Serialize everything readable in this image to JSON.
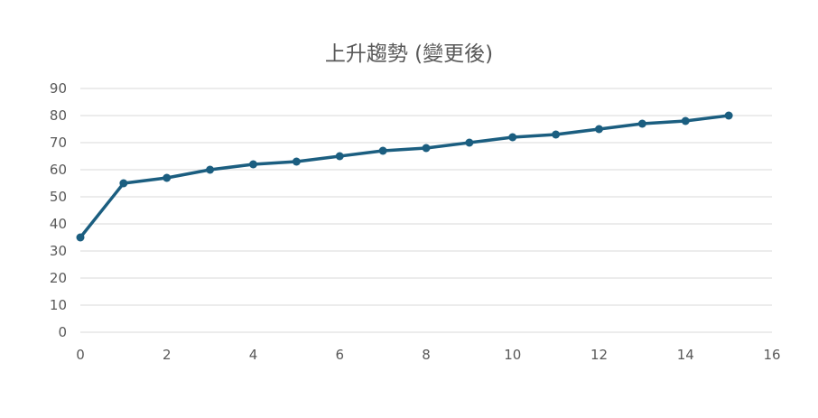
{
  "chart_data": {
    "type": "line",
    "title": "上升趨勢 (變更後)",
    "xlabel": "",
    "ylabel": "",
    "xlim": [
      0,
      16
    ],
    "ylim": [
      0,
      90
    ],
    "xticks": [
      0,
      2,
      4,
      6,
      8,
      10,
      12,
      14,
      16
    ],
    "yticks": [
      0,
      10,
      20,
      30,
      40,
      50,
      60,
      70,
      80,
      90
    ],
    "grid": "horizontal",
    "legend": "none",
    "series": [
      {
        "color": "#1b5e80",
        "markers": true,
        "x": [
          0,
          1,
          2,
          3,
          4,
          5,
          6,
          7,
          8,
          9,
          10,
          11,
          12,
          13,
          14,
          15
        ],
        "y": [
          35,
          55,
          57,
          60,
          62,
          63,
          65,
          67,
          68,
          70,
          72,
          73,
          75,
          77,
          78,
          80
        ]
      }
    ]
  }
}
